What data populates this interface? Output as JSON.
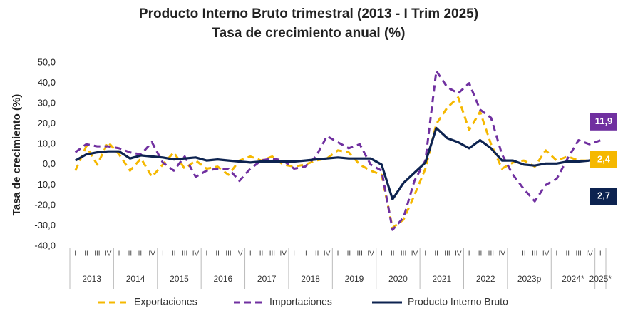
{
  "chart_data": {
    "type": "line",
    "title": [
      "Producto Interno Bruto trimestral (2013 - I Trim 2025)",
      "Tasa de crecimiento anual (%)"
    ],
    "y_label": "Tasa de crecimiento (%)",
    "categories": [
      "I",
      "II",
      "III",
      "IV",
      "I",
      "II",
      "III",
      "IV",
      "I",
      "II",
      "III",
      "IV",
      "I",
      "II",
      "III",
      "IV",
      "I",
      "II",
      "III",
      "IV",
      "I",
      "II",
      "III",
      "IV",
      "I",
      "II",
      "III",
      "IV",
      "I",
      "II",
      "III",
      "IV",
      "I",
      "II",
      "III",
      "IV",
      "I",
      "II",
      "III",
      "IV",
      "I",
      "II",
      "III",
      "IV",
      "I",
      "II",
      "III",
      "IV",
      "I"
    ],
    "year_groups": [
      "2013",
      "2014",
      "2015",
      "2016",
      "2017",
      "2018",
      "2019",
      "2020",
      "2021",
      "2022",
      "2023p",
      "2024*",
      "2025*"
    ],
    "ylim": [
      -40,
      50
    ],
    "yticks": [
      {
        "value": -40,
        "label": "-40,0"
      },
      {
        "value": -30,
        "label": "-30,0"
      },
      {
        "value": -20,
        "label": "-20,0"
      },
      {
        "value": -10,
        "label": "-10,0"
      },
      {
        "value": 0,
        "label": "0,0"
      },
      {
        "value": 10,
        "label": "10,0"
      },
      {
        "value": 20,
        "label": "20,0"
      },
      {
        "value": 30,
        "label": "30,0"
      },
      {
        "value": 40,
        "label": "40,0"
      },
      {
        "value": 50,
        "label": "50,0"
      }
    ],
    "grid": false,
    "series": [
      {
        "name": "Exportaciones",
        "color": "#f5b800",
        "dashed": true,
        "end_label": "2,4",
        "values": [
          -3,
          9,
          0,
          11,
          5,
          -3,
          3,
          -6,
          0,
          6,
          -2,
          2,
          -2,
          -1,
          -5,
          2,
          4,
          2,
          4,
          0,
          -1,
          0,
          2,
          3,
          7,
          6,
          0,
          -3,
          -5,
          -31,
          -27,
          -15,
          -2,
          20,
          28,
          33,
          17,
          26,
          10,
          -2,
          1,
          2,
          -1,
          7,
          2,
          4,
          2,
          2,
          2.4
        ]
      },
      {
        "name": "Importaciones",
        "color": "#7030a0",
        "dashed": true,
        "end_label": "11,9",
        "values": [
          6,
          10,
          9,
          9,
          8,
          6,
          5,
          11,
          1,
          -3,
          4,
          -6,
          -3,
          -2,
          -2,
          -8,
          -2,
          2,
          3,
          2,
          -2,
          -1,
          4,
          14,
          11,
          8,
          10,
          0,
          -3,
          -32,
          -26,
          -8,
          2,
          46,
          38,
          35,
          40,
          27,
          23,
          5,
          -5,
          -12,
          -18,
          -10,
          -7,
          3,
          12,
          10,
          11.9
        ]
      },
      {
        "name": "Producto Interno Bruto",
        "color": "#0d2350",
        "dashed": false,
        "end_label": "2,7",
        "values": [
          2,
          5,
          6,
          6.5,
          6.5,
          3,
          4.5,
          4,
          3.5,
          2.5,
          3,
          3.5,
          2,
          2.5,
          2,
          1.5,
          1,
          1.5,
          1.5,
          1.5,
          1.5,
          2,
          2.5,
          3,
          3.5,
          3,
          3,
          3,
          0,
          -17,
          -9,
          -4,
          1,
          18,
          13,
          11,
          8,
          12,
          8,
          2,
          2,
          0,
          -0.5,
          0.5,
          0.5,
          1.5,
          1.5,
          2,
          2.7
        ]
      }
    ]
  }
}
